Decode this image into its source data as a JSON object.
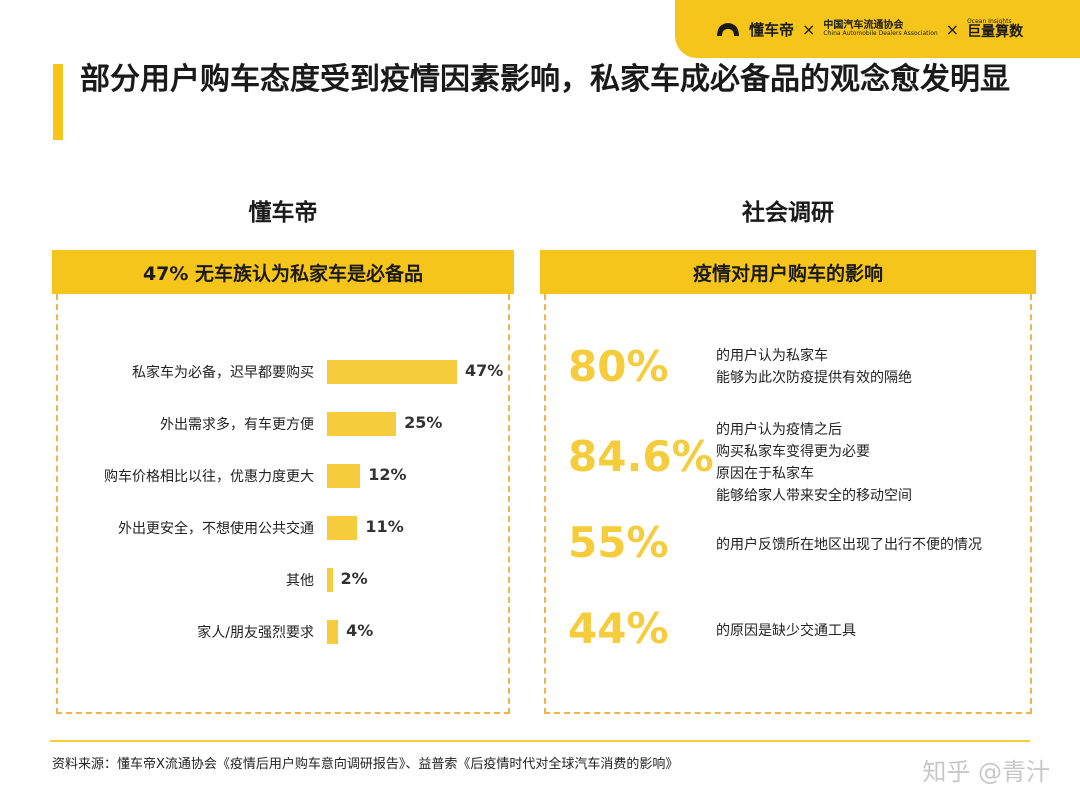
{
  "brand": {
    "logo1": "懂车帝",
    "sep": "×",
    "logo2": "中国汽车流通协会",
    "logo2_en": "China Automobile Dealers Association",
    "logo3": "巨量算数",
    "logo3_en": "Ocean Insights"
  },
  "title": "部分用户购车态度受到疫情因素影响，私家车成必备品的观念愈发明显",
  "left": {
    "section": "懂车帝",
    "panel_title": "47% 无车族认为私家车是必备品"
  },
  "right": {
    "section": "社会调研",
    "panel_title": "疫情对用户购车的影响",
    "stats": [
      {
        "value": "80%",
        "text": "的用户认为私家车\n能够为此次防疫提供有效的隔绝"
      },
      {
        "value": "84.6%",
        "text": "的用户认为疫情之后\n购买私家车变得更为必要\n原因在于私家车\n能够给家人带来安全的移动空间"
      },
      {
        "value": "55%",
        "text": "的用户反馈所在地区出现了出行不便的情况"
      },
      {
        "value": "44%",
        "text": "的原因是缺少交通工具"
      }
    ]
  },
  "chart_data": {
    "type": "bar",
    "orientation": "horizontal",
    "categories": [
      "私家车为必备，迟早都要购买",
      "外出需求多，有车更方便",
      "购车价格相比以往，优惠力度更大",
      "外出更安全，不想使用公共交通",
      "其他",
      "家人/朋友强烈要求"
    ],
    "values": [
      47,
      25,
      12,
      11,
      2,
      4
    ],
    "value_labels": [
      "47%",
      "25%",
      "12%",
      "11%",
      "2%",
      "4%"
    ],
    "color": "#f5cd3c"
  },
  "footer": {
    "source": "资料来源：懂车帝X流通协会《疫情后用户购车意向调研报告》、益普索《后疫情时代对全球汽车消费的影响》",
    "watermark": "知乎 @青汁"
  },
  "colors": {
    "accent": "#f5c51c",
    "bar": "#f5cd3c",
    "dashed": "#f0b54a"
  }
}
